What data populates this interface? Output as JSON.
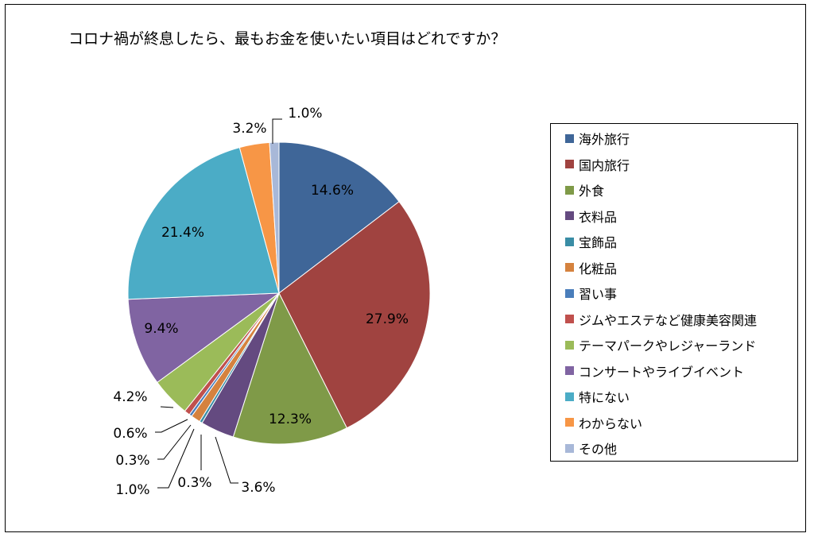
{
  "chart_data": {
    "type": "pie",
    "title": "コロナ禍が終息したら、最もお金を使いたい項目はどれですか？",
    "categories": [
      "海外旅行",
      "国内旅行",
      "外食",
      "衣料品",
      "宝飾品",
      "化粧品",
      "習い事",
      "ジムやエステなど健康美容関連",
      "テーマパークやレジャーランド",
      "コンサートやライブイベント",
      "特にない",
      "わからない",
      "その他"
    ],
    "values": [
      14.6,
      27.9,
      12.3,
      3.6,
      0.3,
      1.0,
      0.3,
      0.6,
      4.2,
      9.4,
      21.4,
      3.2,
      1.0
    ],
    "data_labels": [
      "14.6%",
      "27.9%",
      "12.3%",
      "3.6%",
      "0.3%",
      "1.0%",
      "0.3%",
      "0.6%",
      "4.2%",
      "9.4%",
      "21.4%",
      "3.2%",
      "1.0%"
    ],
    "colors": [
      "#3F6698",
      "#A04340",
      "#7F9A48",
      "#644A80",
      "#3A8DA5",
      "#D5823E",
      "#4A7EBB",
      "#C0504D",
      "#9BBB59",
      "#8064A2",
      "#4BACC6",
      "#F79646",
      "#A8B8D8"
    ],
    "legend_position": "right",
    "start_angle": "12 o'clock",
    "direction": "clockwise"
  }
}
